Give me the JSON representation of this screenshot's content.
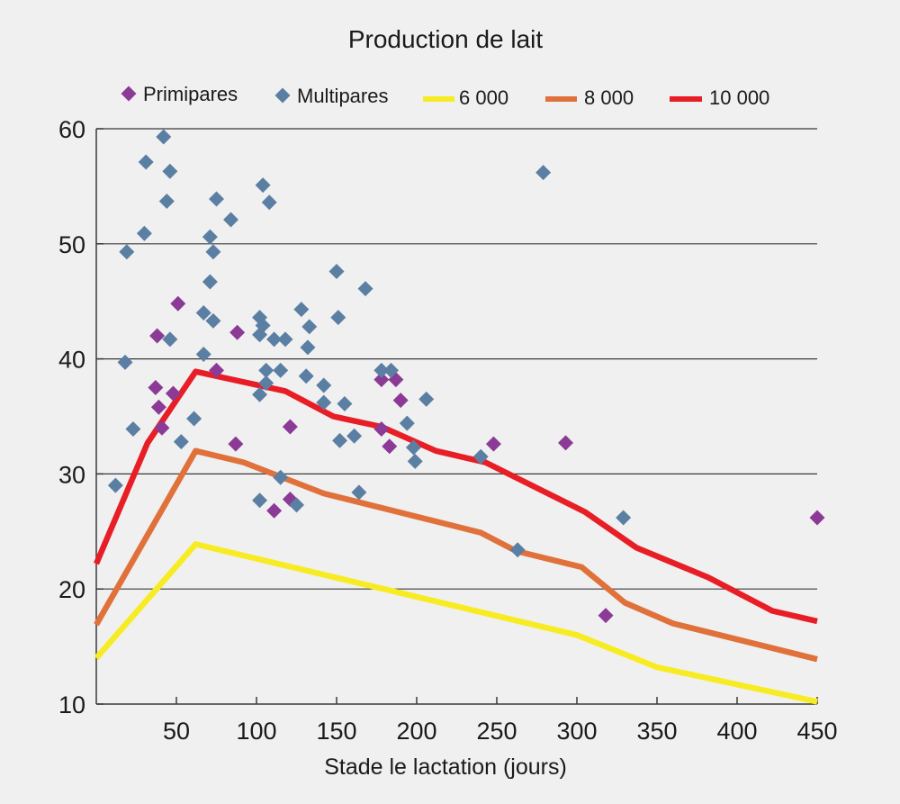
{
  "chart_data": {
    "type": "scatter",
    "title": "Production de lait",
    "xlabel": "Stade le lactation (jours)",
    "ylabel": "",
    "xlim": [
      0,
      450
    ],
    "ylim": [
      10,
      60
    ],
    "xticks": [
      50,
      100,
      150,
      200,
      250,
      300,
      350,
      400,
      450
    ],
    "yticks": [
      10,
      20,
      30,
      40,
      50,
      60
    ],
    "grid": "horizontal",
    "legend_position": "top",
    "legend": [
      "Primipares",
      "Multipares",
      "6 000",
      "8 000",
      "10 000"
    ],
    "scatter_series": [
      {
        "name": "Primipares",
        "color": "#8b3a96",
        "marker": "diamond",
        "points": [
          [
            38,
            42
          ],
          [
            37,
            37.5
          ],
          [
            39,
            35.8
          ],
          [
            41,
            34
          ],
          [
            48,
            37
          ],
          [
            51,
            44.8
          ],
          [
            75,
            39
          ],
          [
            88,
            42.3
          ],
          [
            87,
            32.6
          ],
          [
            111,
            26.8
          ],
          [
            121,
            34.1
          ],
          [
            121,
            27.8
          ],
          [
            178,
            38.2
          ],
          [
            178,
            33.9
          ],
          [
            183,
            32.4
          ],
          [
            187,
            38.2
          ],
          [
            190,
            36.4
          ],
          [
            248,
            32.6
          ],
          [
            293,
            32.7
          ],
          [
            318,
            17.7
          ],
          [
            450,
            26.2
          ]
        ]
      },
      {
        "name": "Multipares",
        "color": "#5b7fa3",
        "marker": "diamond",
        "points": [
          [
            12,
            29
          ],
          [
            18,
            39.7
          ],
          [
            19,
            49.3
          ],
          [
            23,
            33.9
          ],
          [
            30,
            50.9
          ],
          [
            31,
            57.1
          ],
          [
            42,
            59.3
          ],
          [
            44,
            53.7
          ],
          [
            46,
            56.3
          ],
          [
            46,
            41.7
          ],
          [
            53,
            32.8
          ],
          [
            61,
            34.8
          ],
          [
            67,
            44
          ],
          [
            67,
            40.4
          ],
          [
            71,
            50.6
          ],
          [
            71,
            46.7
          ],
          [
            73,
            49.3
          ],
          [
            73,
            43.3
          ],
          [
            75,
            53.9
          ],
          [
            84,
            52.1
          ],
          [
            102,
            43.6
          ],
          [
            102,
            42.1
          ],
          [
            102,
            36.9
          ],
          [
            102,
            27.7
          ],
          [
            104,
            42.9
          ],
          [
            104,
            55.1
          ],
          [
            106,
            37.9
          ],
          [
            106,
            39
          ],
          [
            108,
            53.6
          ],
          [
            111,
            41.7
          ],
          [
            115,
            39
          ],
          [
            115,
            29.7
          ],
          [
            118,
            41.7
          ],
          [
            125,
            27.3
          ],
          [
            128,
            44.3
          ],
          [
            131,
            38.5
          ],
          [
            132,
            41
          ],
          [
            133,
            42.8
          ],
          [
            142,
            37.7
          ],
          [
            142,
            36.2
          ],
          [
            150,
            47.6
          ],
          [
            151,
            43.6
          ],
          [
            152,
            32.9
          ],
          [
            155,
            36.1
          ],
          [
            161,
            33.3
          ],
          [
            164,
            28.4
          ],
          [
            168,
            46.1
          ],
          [
            178,
            39
          ],
          [
            184,
            39
          ],
          [
            194,
            34.4
          ],
          [
            198,
            32.3
          ],
          [
            199,
            31.1
          ],
          [
            206,
            36.5
          ],
          [
            240,
            31.5
          ],
          [
            263,
            23.4
          ],
          [
            279,
            56.2
          ],
          [
            329,
            26.2
          ]
        ]
      }
    ],
    "line_series": [
      {
        "name": "6 000",
        "color": "#f7ec24",
        "points": [
          [
            0,
            14
          ],
          [
            62,
            23.9
          ],
          [
            300,
            16
          ],
          [
            350,
            13.2
          ],
          [
            450,
            10.2
          ]
        ]
      },
      {
        "name": "8 000",
        "color": "#e0713b",
        "points": [
          [
            0,
            16.9
          ],
          [
            62,
            32
          ],
          [
            92,
            31
          ],
          [
            142,
            28.3
          ],
          [
            240,
            24.9
          ],
          [
            262,
            23.3
          ],
          [
            303,
            21.9
          ],
          [
            330,
            18.8
          ],
          [
            360,
            17
          ],
          [
            450,
            13.9
          ]
        ]
      },
      {
        "name": "10 000",
        "color": "#e81e27",
        "points": [
          [
            0,
            22.2
          ],
          [
            32,
            32.7
          ],
          [
            62,
            38.9
          ],
          [
            118,
            37.2
          ],
          [
            148,
            35
          ],
          [
            178,
            34.1
          ],
          [
            212,
            32
          ],
          [
            243,
            31
          ],
          [
            305,
            26.7
          ],
          [
            337,
            23.6
          ],
          [
            382,
            21
          ],
          [
            422,
            18.1
          ],
          [
            450,
            17.2
          ]
        ]
      }
    ]
  }
}
